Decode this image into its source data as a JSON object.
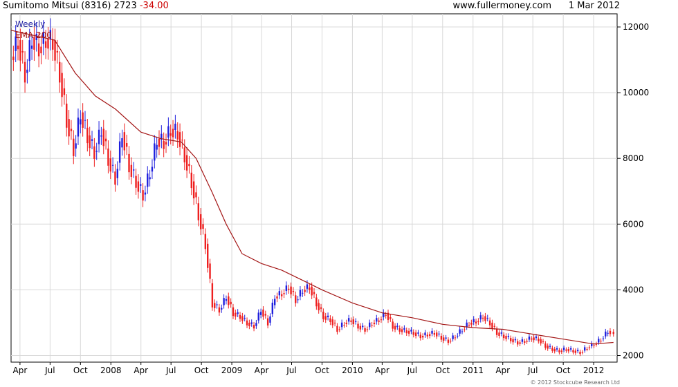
{
  "header": {
    "name": "Sumitomo Mitsui (8316)",
    "last": "2723",
    "change": "-34.00",
    "source": "www.fullermoney.com",
    "date": "1 Mar 2012"
  },
  "footer": {
    "copyright": "© 2012 Stockcube Research Ltd"
  },
  "colors": {
    "up": "#1f1fdd",
    "down": "#ee1f1f",
    "ema": "#a31515",
    "grid": "#d8d8d8",
    "frame": "#000000",
    "legend_weekly": "#1f1fa0",
    "legend_ema": "#a31515"
  },
  "chart_data": {
    "type": "candlestick",
    "legend": [
      "Weekly",
      "EMA 200"
    ],
    "ylim": [
      1800,
      12400
    ],
    "yticks": [
      2000,
      4000,
      6000,
      8000,
      10000,
      12000
    ],
    "ytick_labels": [
      "2000",
      "4000",
      "6000",
      "8000",
      "10000",
      "12000"
    ],
    "x_range": [
      "2007-03-05",
      "2012-03-12"
    ],
    "xticks": [
      {
        "date": "2007-04-01",
        "label": "Apr"
      },
      {
        "date": "2007-07-01",
        "label": "Jul"
      },
      {
        "date": "2007-10-01",
        "label": "Oct"
      },
      {
        "date": "2008-01-01",
        "label": "2008"
      },
      {
        "date": "2008-04-01",
        "label": "Apr"
      },
      {
        "date": "2008-07-01",
        "label": "Jul"
      },
      {
        "date": "2008-10-01",
        "label": "Oct"
      },
      {
        "date": "2009-01-01",
        "label": "2009"
      },
      {
        "date": "2009-04-01",
        "label": "Apr"
      },
      {
        "date": "2009-07-01",
        "label": "Jul"
      },
      {
        "date": "2009-10-01",
        "label": "Oct"
      },
      {
        "date": "2010-01-01",
        "label": "2010"
      },
      {
        "date": "2010-04-01",
        "label": "Apr"
      },
      {
        "date": "2010-07-01",
        "label": "Jul"
      },
      {
        "date": "2010-10-01",
        "label": "Oct"
      },
      {
        "date": "2011-01-01",
        "label": "2011"
      },
      {
        "date": "2011-04-01",
        "label": "Apr"
      },
      {
        "date": "2011-07-01",
        "label": "Jul"
      },
      {
        "date": "2011-10-01",
        "label": "Oct"
      },
      {
        "date": "2012-01-01",
        "label": "2012"
      },
      {
        "date": "2012-04-01",
        "label": "Apr"
      }
    ],
    "series": [
      {
        "name": "Weekly",
        "style": "candle",
        "points": [
          {
            "date": "2007-03-12",
            "close": 11100
          },
          {
            "date": "2007-04-02",
            "close": 11600
          },
          {
            "date": "2007-04-23",
            "close": 10600
          },
          {
            "date": "2007-05-14",
            "close": 11700
          },
          {
            "date": "2007-06-04",
            "close": 11400
          },
          {
            "date": "2007-06-25",
            "close": 11650
          },
          {
            "date": "2007-07-16",
            "close": 11600
          },
          {
            "date": "2007-08-06",
            "close": 10600
          },
          {
            "date": "2007-08-27",
            "close": 9200
          },
          {
            "date": "2007-09-17",
            "close": 8300
          },
          {
            "date": "2007-10-08",
            "close": 9400
          },
          {
            "date": "2007-10-29",
            "close": 8700
          },
          {
            "date": "2007-11-19",
            "close": 8200
          },
          {
            "date": "2007-12-10",
            "close": 8900
          },
          {
            "date": "2007-12-31",
            "close": 8000
          },
          {
            "date": "2008-01-21",
            "close": 7400
          },
          {
            "date": "2008-02-11",
            "close": 8800
          },
          {
            "date": "2008-03-03",
            "close": 7800
          },
          {
            "date": "2008-03-24",
            "close": 7300
          },
          {
            "date": "2008-04-14",
            "close": 6900
          },
          {
            "date": "2008-05-05",
            "close": 7600
          },
          {
            "date": "2008-05-26",
            "close": 8600
          },
          {
            "date": "2008-06-16",
            "close": 8500
          },
          {
            "date": "2008-07-07",
            "close": 8900
          },
          {
            "date": "2008-07-28",
            "close": 8800
          },
          {
            "date": "2008-08-18",
            "close": 8100
          },
          {
            "date": "2008-09-08",
            "close": 7300
          },
          {
            "date": "2008-09-29",
            "close": 6300
          },
          {
            "date": "2008-10-20",
            "close": 5400
          },
          {
            "date": "2008-11-10",
            "close": 3600
          },
          {
            "date": "2008-12-01",
            "close": 3400
          },
          {
            "date": "2008-12-22",
            "close": 3800
          },
          {
            "date": "2009-01-12",
            "close": 3300
          },
          {
            "date": "2009-02-02",
            "close": 3200
          },
          {
            "date": "2009-02-23",
            "close": 3000
          },
          {
            "date": "2009-03-16",
            "close": 2900
          },
          {
            "date": "2009-04-06",
            "close": 3400
          },
          {
            "date": "2009-04-27",
            "close": 3000
          },
          {
            "date": "2009-05-18",
            "close": 3800
          },
          {
            "date": "2009-06-08",
            "close": 3900
          },
          {
            "date": "2009-06-29",
            "close": 4100
          },
          {
            "date": "2009-07-20",
            "close": 3700
          },
          {
            "date": "2009-08-10",
            "close": 4000
          },
          {
            "date": "2009-08-31",
            "close": 4100
          },
          {
            "date": "2009-09-21",
            "close": 3600
          },
          {
            "date": "2009-10-12",
            "close": 3200
          },
          {
            "date": "2009-11-02",
            "close": 3100
          },
          {
            "date": "2009-11-23",
            "close": 2800
          },
          {
            "date": "2009-12-14",
            "close": 3000
          },
          {
            "date": "2010-01-04",
            "close": 3100
          },
          {
            "date": "2010-01-25",
            "close": 2900
          },
          {
            "date": "2010-02-15",
            "close": 2800
          },
          {
            "date": "2010-03-08",
            "close": 3000
          },
          {
            "date": "2010-03-29",
            "close": 3100
          },
          {
            "date": "2010-04-19",
            "close": 3300
          },
          {
            "date": "2010-05-10",
            "close": 2900
          },
          {
            "date": "2010-05-31",
            "close": 2800
          },
          {
            "date": "2010-06-21",
            "close": 2750
          },
          {
            "date": "2010-07-12",
            "close": 2700
          },
          {
            "date": "2010-08-02",
            "close": 2600
          },
          {
            "date": "2010-08-23",
            "close": 2650
          },
          {
            "date": "2010-09-13",
            "close": 2700
          },
          {
            "date": "2010-10-04",
            "close": 2550
          },
          {
            "date": "2010-10-25",
            "close": 2450
          },
          {
            "date": "2010-11-15",
            "close": 2600
          },
          {
            "date": "2010-12-06",
            "close": 2800
          },
          {
            "date": "2010-12-27",
            "close": 3000
          },
          {
            "date": "2011-01-17",
            "close": 3050
          },
          {
            "date": "2011-02-07",
            "close": 3200
          },
          {
            "date": "2011-02-28",
            "close": 3000
          },
          {
            "date": "2011-03-21",
            "close": 2700
          },
          {
            "date": "2011-04-11",
            "close": 2600
          },
          {
            "date": "2011-05-02",
            "close": 2500
          },
          {
            "date": "2011-05-23",
            "close": 2400
          },
          {
            "date": "2011-06-13",
            "close": 2450
          },
          {
            "date": "2011-07-04",
            "close": 2550
          },
          {
            "date": "2011-07-25",
            "close": 2500
          },
          {
            "date": "2011-08-15",
            "close": 2300
          },
          {
            "date": "2011-09-05",
            "close": 2200
          },
          {
            "date": "2011-09-26",
            "close": 2150
          },
          {
            "date": "2011-10-17",
            "close": 2200
          },
          {
            "date": "2011-11-07",
            "close": 2150
          },
          {
            "date": "2011-11-28",
            "close": 2100
          },
          {
            "date": "2011-12-19",
            "close": 2250
          },
          {
            "date": "2012-01-09",
            "close": 2350
          },
          {
            "date": "2012-01-30",
            "close": 2500
          },
          {
            "date": "2012-02-20",
            "close": 2750
          },
          {
            "date": "2012-03-01",
            "close": 2723
          }
        ]
      },
      {
        "name": "EMA 200",
        "style": "line",
        "points": [
          {
            "date": "2007-03-05",
            "value": 11900
          },
          {
            "date": "2007-06-01",
            "value": 11700
          },
          {
            "date": "2007-07-15",
            "value": 11600
          },
          {
            "date": "2007-09-15",
            "value": 10600
          },
          {
            "date": "2007-11-15",
            "value": 9900
          },
          {
            "date": "2008-01-15",
            "value": 9500
          },
          {
            "date": "2008-04-01",
            "value": 8800
          },
          {
            "date": "2008-06-01",
            "value": 8600
          },
          {
            "date": "2008-08-01",
            "value": 8500
          },
          {
            "date": "2008-09-15",
            "value": 8000
          },
          {
            "date": "2008-11-01",
            "value": 7000
          },
          {
            "date": "2008-12-15",
            "value": 6000
          },
          {
            "date": "2009-02-01",
            "value": 5100
          },
          {
            "date": "2009-04-01",
            "value": 4800
          },
          {
            "date": "2009-06-01",
            "value": 4600
          },
          {
            "date": "2009-08-01",
            "value": 4300
          },
          {
            "date": "2009-10-01",
            "value": 4000
          },
          {
            "date": "2010-01-01",
            "value": 3600
          },
          {
            "date": "2010-04-01",
            "value": 3300
          },
          {
            "date": "2010-07-01",
            "value": 3150
          },
          {
            "date": "2010-10-01",
            "value": 2950
          },
          {
            "date": "2011-01-01",
            "value": 2850
          },
          {
            "date": "2011-04-01",
            "value": 2800
          },
          {
            "date": "2011-07-01",
            "value": 2650
          },
          {
            "date": "2011-10-01",
            "value": 2500
          },
          {
            "date": "2012-01-01",
            "value": 2350
          },
          {
            "date": "2012-03-01",
            "value": 2400
          }
        ]
      }
    ]
  }
}
